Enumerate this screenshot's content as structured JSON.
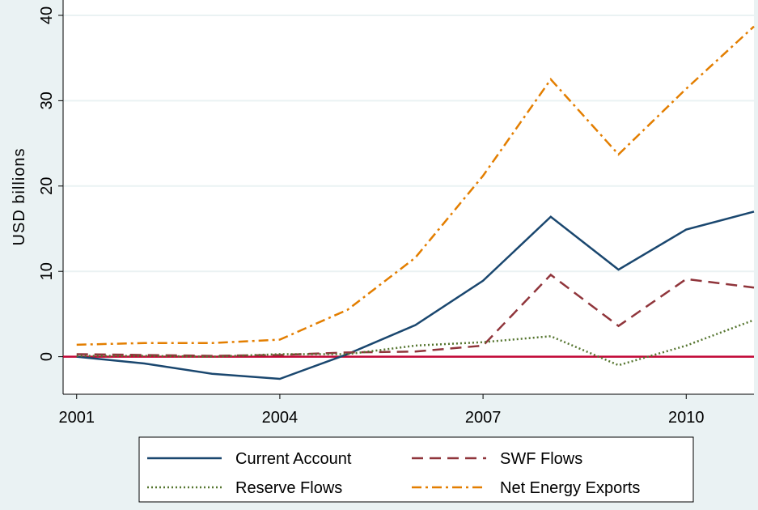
{
  "chart_data": {
    "type": "line",
    "y_label": "USD billions",
    "x": [
      2001,
      2002,
      2003,
      2004,
      2005,
      2006,
      2007,
      2008,
      2009,
      2010,
      2011
    ],
    "xlim": [
      2000.8,
      2011
    ],
    "xticks": [
      2001,
      2004,
      2007,
      2010
    ],
    "ylim": [
      -4.4,
      41.8
    ],
    "yticks": [
      0,
      10,
      20,
      30,
      40
    ],
    "grid": true,
    "yline": 0,
    "yline_color": "#c10534",
    "legend": "bottom",
    "series": [
      {
        "name": "Current Account",
        "color": "#1a476f",
        "dash": "solid",
        "values": [
          0,
          -0.8,
          -2.0,
          -2.6,
          0.3,
          3.7,
          8.9,
          16.4,
          10.2,
          14.9,
          17.0
        ]
      },
      {
        "name": "SWF Flows",
        "color": "#90353b",
        "dash": "dashed",
        "values": [
          0.3,
          0.2,
          0.1,
          0.2,
          0.5,
          0.6,
          1.3,
          9.6,
          3.6,
          9.1,
          8.1
        ]
      },
      {
        "name": "Reserve Flows",
        "color": "#55752f",
        "dash": "dotted",
        "values": [
          0.1,
          0.1,
          0.0,
          0.3,
          0.3,
          1.3,
          1.7,
          2.4,
          -1.0,
          1.3,
          4.3
        ]
      },
      {
        "name": "Net Energy Exports",
        "color": "#e37e00",
        "dash": "dashdot",
        "values": [
          1.4,
          1.6,
          1.6,
          2.0,
          5.5,
          11.6,
          21.2,
          32.5,
          23.7,
          31.4,
          38.7
        ]
      }
    ]
  }
}
